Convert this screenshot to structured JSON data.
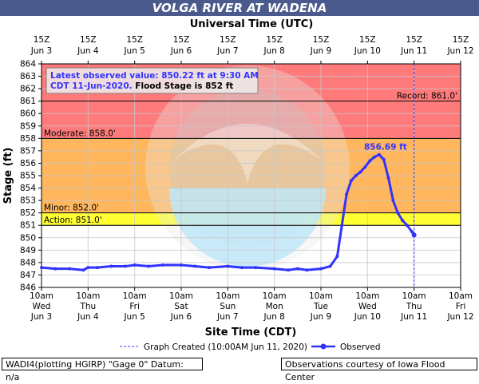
{
  "title": "VOLGA RIVER AT WADENA",
  "top_axis_title": "Universal Time (UTC)",
  "colors": {
    "title_bg": "#4a5a8c",
    "record_zone": "#ff7a7a",
    "moderate_zone": "#ffb65c",
    "minor_zone": "#ffff33",
    "series": "#3333ff",
    "forecast_line": "#3333ff"
  },
  "info_box": {
    "line1": "Latest observed value: 850.22 ft at 9:30 AM",
    "line2a": "CDT 11-Jun-2020.",
    "line2b": " Flood Stage is 852 ft"
  },
  "legend": {
    "created_label": "Graph Created (10:00AM Jun 11, 2020)",
    "observed_label": "Observed"
  },
  "footer": {
    "left": "WADI4(plotting HGIRP) \"Gage 0\" Datum: n/a",
    "right": "Observations courtesy of Iowa Flood Center"
  },
  "chart_data": {
    "type": "line",
    "title": "VOLGA RIVER AT WADENA",
    "xlabel": "Site Time (CDT)",
    "ylabel": "Stage (ft)",
    "top_xlabel": "Universal Time (UTC)",
    "ylim": [
      846,
      864
    ],
    "xlim": [
      "Jun 3 10am",
      "Jun 12 10am"
    ],
    "y_ticks": [
      846,
      847,
      848,
      849,
      850,
      851,
      852,
      853,
      854,
      855,
      856,
      857,
      858,
      859,
      860,
      861,
      862,
      863,
      864
    ],
    "x_tick_labels": [
      [
        "10am",
        "Wed",
        "Jun 3"
      ],
      [
        "10am",
        "Thu",
        "Jun 4"
      ],
      [
        "10am",
        "Fri",
        "Jun 5"
      ],
      [
        "10am",
        "Sat",
        "Jun 6"
      ],
      [
        "10am",
        "Sun",
        "Jun 7"
      ],
      [
        "10am",
        "Mon",
        "Jun 8"
      ],
      [
        "10am",
        "Tue",
        "Jun 9"
      ],
      [
        "10am",
        "Wed",
        "Jun 10"
      ],
      [
        "10am",
        "Thu",
        "Jun 11"
      ],
      [
        "10am",
        "Fri",
        "Jun 12"
      ]
    ],
    "top_tick_labels": [
      [
        "15Z",
        "Jun 3"
      ],
      [
        "15Z",
        "Jun 4"
      ],
      [
        "15Z",
        "Jun 5"
      ],
      [
        "15Z",
        "Jun 6"
      ],
      [
        "15Z",
        "Jun 7"
      ],
      [
        "15Z",
        "Jun 8"
      ],
      [
        "15Z",
        "Jun 9"
      ],
      [
        "15Z",
        "Jun 10"
      ],
      [
        "15Z",
        "Jun 11"
      ],
      [
        "15Z",
        "Jun 12"
      ]
    ],
    "thresholds": [
      {
        "label": "Record: 861.0'",
        "value": 861.0
      },
      {
        "label": "Moderate: 858.0'",
        "value": 858.0
      },
      {
        "label": "Minor: 852.0'",
        "value": 852.0
      },
      {
        "label": "Action: 851.0'",
        "value": 851.0
      }
    ],
    "peak_label": "856.69 ft",
    "graph_created_day": 8.0,
    "grid": true,
    "series": [
      {
        "name": "Observed",
        "x_days_since_jun3_10am": [
          0,
          0.3,
          0.6,
          0.9,
          1.0,
          1.2,
          1.5,
          1.8,
          2.0,
          2.3,
          2.6,
          3.0,
          3.3,
          3.6,
          4.0,
          4.3,
          4.6,
          5.0,
          5.3,
          5.5,
          5.7,
          6.0,
          6.2,
          6.35,
          6.45,
          6.55,
          6.65,
          6.75,
          6.85,
          6.95,
          7.05,
          7.15,
          7.25,
          7.35,
          7.45,
          7.55,
          7.65,
          7.75,
          7.85,
          7.95,
          8.0
        ],
        "y": [
          847.6,
          847.5,
          847.5,
          847.4,
          847.6,
          847.6,
          847.7,
          847.7,
          847.8,
          847.7,
          847.8,
          847.8,
          847.7,
          847.6,
          847.7,
          847.6,
          847.6,
          847.5,
          847.4,
          847.5,
          847.4,
          847.5,
          847.7,
          848.5,
          851.0,
          853.5,
          854.6,
          855.0,
          855.3,
          855.7,
          856.2,
          856.5,
          856.69,
          856.3,
          854.8,
          853.0,
          852.0,
          851.4,
          851.0,
          850.5,
          850.22
        ]
      }
    ]
  }
}
